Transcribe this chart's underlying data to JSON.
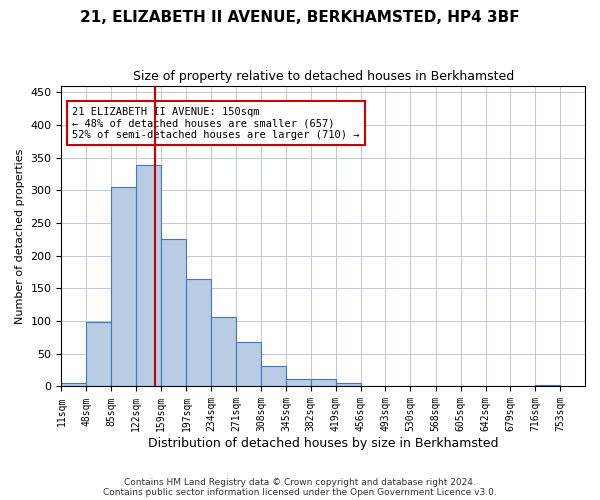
{
  "title": "21, ELIZABETH II AVENUE, BERKHAMSTED, HP4 3BF",
  "subtitle": "Size of property relative to detached houses in Berkhamsted",
  "xlabel": "Distribution of detached houses by size in Berkhamsted",
  "ylabel": "Number of detached properties",
  "footer_line1": "Contains HM Land Registry data © Crown copyright and database right 2024.",
  "footer_line2": "Contains public sector information licensed under the Open Government Licence v3.0.",
  "bin_labels": [
    "11sqm",
    "48sqm",
    "85sqm",
    "122sqm",
    "159sqm",
    "197sqm",
    "234sqm",
    "271sqm",
    "308sqm",
    "345sqm",
    "382sqm",
    "419sqm",
    "456sqm",
    "493sqm",
    "530sqm",
    "568sqm",
    "605sqm",
    "642sqm",
    "679sqm",
    "716sqm",
    "753sqm"
  ],
  "bin_edges": [
    11,
    48,
    85,
    122,
    159,
    197,
    234,
    271,
    308,
    345,
    382,
    419,
    456,
    493,
    530,
    568,
    605,
    642,
    679,
    716,
    753
  ],
  "bar_values": [
    5,
    99,
    305,
    338,
    226,
    165,
    106,
    68,
    32,
    12,
    12,
    6,
    1,
    0,
    1,
    0,
    0,
    0,
    0,
    3
  ],
  "bar_color": "#b8cce4",
  "bar_edge_color": "#4472c4",
  "background_color": "#ffffff",
  "grid_color": "#c0c8d8",
  "property_size": 150,
  "vline_color": "#cc0000",
  "annotation_text": "21 ELIZABETH II AVENUE: 150sqm\n← 48% of detached houses are smaller (657)\n52% of semi-detached houses are larger (710) →",
  "annotation_box_color": "#ffffff",
  "annotation_box_edge": "#cc0000",
  "ylim": [
    0,
    460
  ],
  "yticks": [
    0,
    50,
    100,
    150,
    200,
    250,
    300,
    350,
    400,
    450
  ]
}
